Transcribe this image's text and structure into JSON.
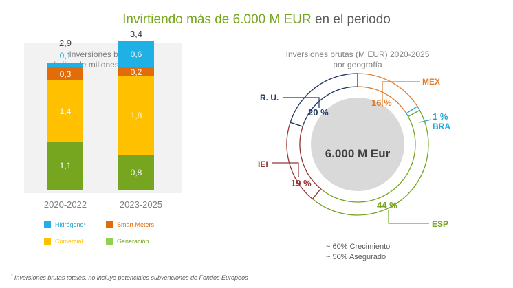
{
  "title": {
    "main": "Invirtiendo más de 6.000 M EUR",
    "rest": "en el periodo"
  },
  "colors": {
    "hidrogeno": "#1fb0e6",
    "smart_meters": "#e36c0a",
    "comercial": "#ffc000",
    "generacion": "#76a51f",
    "mex": "#e07b2a",
    "bra": "#1fa7d9",
    "esp": "#76a51f",
    "iei": "#943634",
    "ru": "#1f3864"
  },
  "chart_data": [
    {
      "type": "bar",
      "stacked": true,
      "subtitle_line1": "Inversiones brutas",
      "subtitle_line2": "(miles de millones de EUR)",
      "categories": [
        "2020-2022",
        "2023-2025"
      ],
      "totals": [
        "2,9",
        "3,4"
      ],
      "series": [
        {
          "name": "Generación",
          "values": [
            1.1,
            0.8
          ],
          "labels": [
            "1,1",
            "0,8"
          ]
        },
        {
          "name": "Comercial",
          "values": [
            1.4,
            1.8
          ],
          "labels": [
            "1,4",
            "1,8"
          ]
        },
        {
          "name": "Smart Meters",
          "values": [
            0.3,
            0.2
          ],
          "labels": [
            "0,3",
            "0,2"
          ]
        },
        {
          "name": "Hidrógeno*",
          "values": [
            0.1,
            0.6
          ],
          "labels": [
            "0,1",
            "0,6"
          ]
        }
      ]
    },
    {
      "type": "pie",
      "donut": true,
      "subtitle_line1": "Inversiones brutas (M EUR) 2020-2025",
      "subtitle_line2": "por geografía",
      "center_label": "6.000 M Eur",
      "slices": [
        {
          "name": "MEX",
          "value": 16,
          "label": "16 %"
        },
        {
          "name": "BRA",
          "value": 1,
          "label": "1 %"
        },
        {
          "name": "ESP",
          "value": 44,
          "label": "44 %"
        },
        {
          "name": "IEI",
          "value": 19,
          "label": "19 %"
        },
        {
          "name": "R. U.",
          "value": 20,
          "label": "20 %"
        }
      ]
    }
  ],
  "notes": {
    "line1": "~ 60% Crecimiento",
    "line2": "~ 50% Asegurado"
  },
  "footnote": {
    "mark": "*",
    "text": "Inversiones brutas totales, no incluye potenciales subvenciones de Fondos Europeos"
  }
}
